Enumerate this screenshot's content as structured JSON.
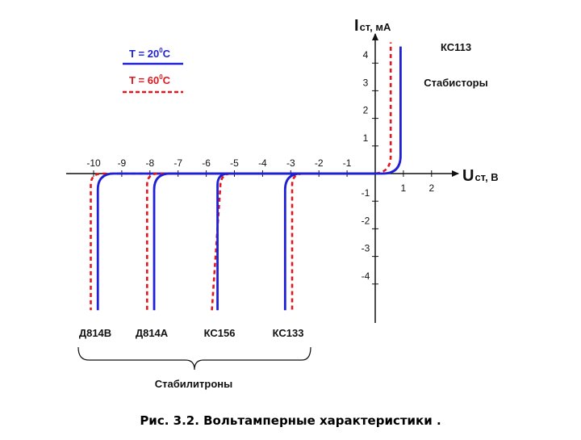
{
  "chart_data": {
    "type": "line",
    "caption": "Рис. 3.2. Вольтамперные характеристики .",
    "y_axis": {
      "main": "I",
      "sub": "ст, мА",
      "ticks": [
        4,
        3,
        2,
        1,
        -1,
        -2,
        -3,
        -4
      ]
    },
    "x_axis": {
      "main": "U",
      "sub": "ст, В",
      "ticks": [
        -10,
        -9,
        -8,
        -7,
        -6,
        -5,
        -4,
        -3,
        -2,
        -1,
        1,
        2
      ]
    },
    "xlim": [
      -10.6,
      2.8
    ],
    "ylim": [
      -5.0,
      4.9
    ],
    "legend": [
      {
        "text": "T = 20",
        "sup": "0",
        "unit": "C",
        "color": "#1f1fd6",
        "style": "solid"
      },
      {
        "text": "T = 60",
        "sup": "0",
        "unit": "C",
        "color": "#e0181e",
        "style": "dashed"
      }
    ],
    "groups": [
      {
        "label": "Стабилитроны"
      },
      {
        "label": "Стабисторы"
      }
    ],
    "devices": [
      {
        "name": "Д814В",
        "group": "Стабилитроны",
        "v20": -9.85,
        "v60": -10.1,
        "ibottom": -4.95
      },
      {
        "name": "Д814А",
        "group": "Стабилитроны",
        "v20": -7.85,
        "v60": -8.1,
        "ibottom": -4.95
      },
      {
        "name": "КС156",
        "group": "Стабилитроны",
        "v20": -5.6,
        "v60": -5.5,
        "ibottom": -4.95
      },
      {
        "name": "КС133",
        "group": "Стабилитроны",
        "v20": -3.2,
        "v60": -2.95,
        "ibottom": -4.95
      },
      {
        "name": "КС113",
        "group": "Стабисторы",
        "v20": 0.9,
        "v60": 0.55,
        "itop": 4.6
      }
    ]
  }
}
